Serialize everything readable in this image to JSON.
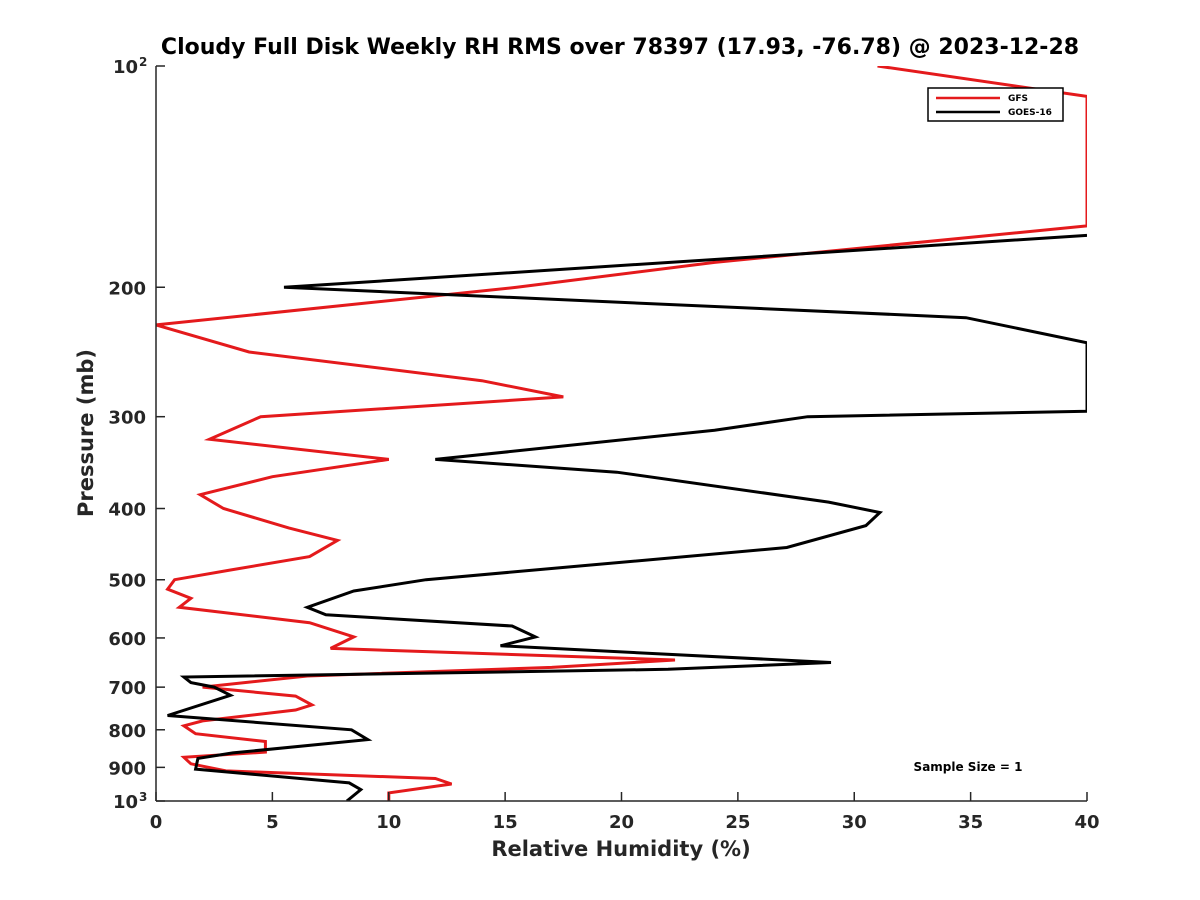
{
  "chart_data": {
    "type": "line",
    "title": "Cloudy Full Disk Weekly RH RMS over 78397 (17.93, -76.78) @ 2023-12-28",
    "xlabel": "Relative Humidity (%)",
    "ylabel": "Pressure (mb)",
    "xlim": [
      0,
      40
    ],
    "ylim": [
      100,
      1000
    ],
    "y_scale": "log",
    "y_reversed": true,
    "x_ticks": [
      0,
      5,
      10,
      15,
      20,
      25,
      30,
      35,
      40
    ],
    "y_ticks": [
      {
        "value": 100,
        "label": "10",
        "exp": "2"
      },
      {
        "value": 200,
        "label": "200",
        "exp": ""
      },
      {
        "value": 300,
        "label": "300",
        "exp": ""
      },
      {
        "value": 400,
        "label": "400",
        "exp": ""
      },
      {
        "value": 500,
        "label": "500",
        "exp": ""
      },
      {
        "value": 600,
        "label": "600",
        "exp": ""
      },
      {
        "value": 700,
        "label": "700",
        "exp": ""
      },
      {
        "value": 800,
        "label": "800",
        "exp": ""
      },
      {
        "value": 900,
        "label": "900",
        "exp": ""
      },
      {
        "value": 1000,
        "label": "10",
        "exp": "3"
      }
    ],
    "grid": false,
    "legend_position": "top-right",
    "annotation": "Sample Size = 1",
    "series": [
      {
        "name": "GFS",
        "color": "#e41a1c",
        "points": [
          [
            31,
            100
          ],
          [
            40,
            110
          ],
          [
            40,
            165
          ],
          [
            24,
            185
          ],
          [
            15.5,
            200
          ],
          [
            0,
            225
          ],
          [
            4,
            245
          ],
          [
            14,
            268
          ],
          [
            17.5,
            282
          ],
          [
            4.5,
            300
          ],
          [
            2.3,
            322
          ],
          [
            10,
            343
          ],
          [
            5,
            362
          ],
          [
            1.9,
            383
          ],
          [
            2.9,
            400
          ],
          [
            5.7,
            425
          ],
          [
            7.8,
            442
          ],
          [
            6.6,
            465
          ],
          [
            3.2,
            485
          ],
          [
            0.8,
            500
          ],
          [
            0.5,
            515
          ],
          [
            1.5,
            530
          ],
          [
            1,
            545
          ],
          [
            6.6,
            572
          ],
          [
            8.5,
            598
          ],
          [
            7.5,
            620
          ],
          [
            22.3,
            643
          ],
          [
            17,
            658
          ],
          [
            6.5,
            676
          ],
          [
            2,
            700
          ],
          [
            6,
            720
          ],
          [
            6.7,
            740
          ],
          [
            6,
            752
          ],
          [
            2,
            778
          ],
          [
            1.2,
            790
          ],
          [
            1.7,
            810
          ],
          [
            4.7,
            830
          ],
          [
            4.7,
            858
          ],
          [
            1.2,
            872
          ],
          [
            1.5,
            890
          ],
          [
            3,
            910
          ],
          [
            12,
            932
          ],
          [
            12.7,
            948
          ],
          [
            10,
            975
          ],
          [
            10,
            1000
          ]
        ]
      },
      {
        "name": "GOES-16",
        "color": "#000000",
        "points": [
          [
            40,
            170
          ],
          [
            5.5,
            200
          ],
          [
            34.8,
            220
          ],
          [
            40,
            238
          ],
          [
            40,
            295
          ],
          [
            28,
            300
          ],
          [
            24,
            313
          ],
          [
            12,
            343
          ],
          [
            19.8,
            357
          ],
          [
            28.9,
            392
          ],
          [
            31.1,
            405
          ],
          [
            30.5,
            422
          ],
          [
            27.1,
            452
          ],
          [
            18.5,
            478
          ],
          [
            11.6,
            500
          ],
          [
            8.5,
            518
          ],
          [
            6.5,
            545
          ],
          [
            7.3,
            558
          ],
          [
            15.3,
            578
          ],
          [
            16.3,
            598
          ],
          [
            14.8,
            615
          ],
          [
            29,
            648
          ],
          [
            22,
            662
          ],
          [
            1.2,
            678
          ],
          [
            1.5,
            690
          ],
          [
            2.5,
            700
          ],
          [
            3.2,
            718
          ],
          [
            0.5,
            765
          ],
          [
            8.4,
            800
          ],
          [
            9.1,
            825
          ],
          [
            3.3,
            860
          ],
          [
            1.8,
            875
          ],
          [
            1.7,
            905
          ],
          [
            8.3,
            945
          ],
          [
            8.8,
            965
          ],
          [
            8.2,
            1000
          ]
        ]
      }
    ]
  }
}
